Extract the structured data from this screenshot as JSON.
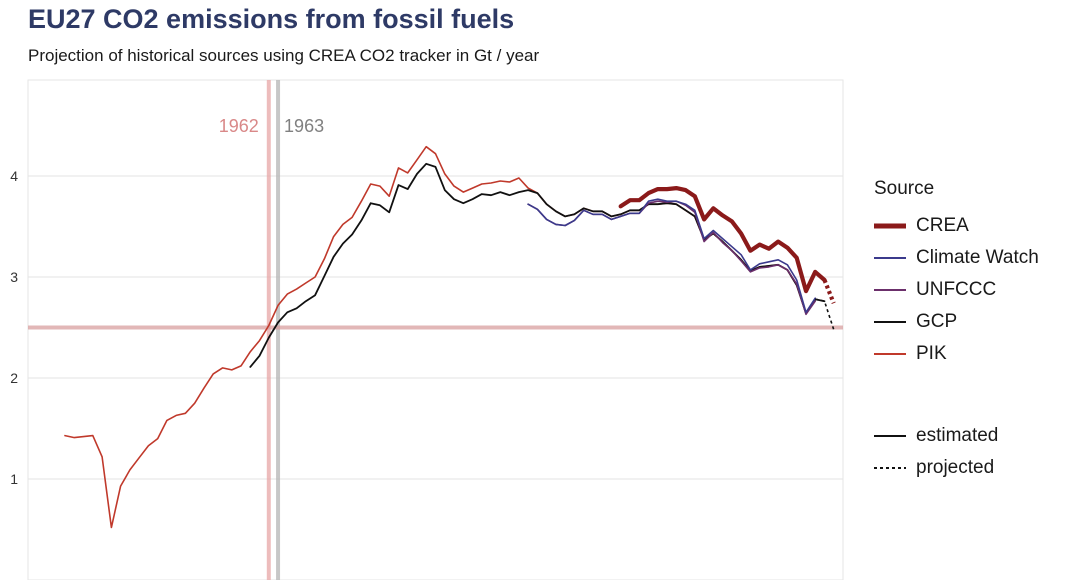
{
  "title": "EU27 CO2 emissions from fossil fuels",
  "subtitle": "Projection of historical sources using CREA CO2 tracker in Gt / year",
  "colors": {
    "CREA": "#8b1a1a",
    "Climate Watch": "#3b3a8c",
    "UNFCCC": "#6b2f6b",
    "GCP": "#111111",
    "PIK": "#c0392b",
    "vline_1962": "#e8a6a6",
    "vline_1963": "#b5b5b5",
    "hline": "#d9a0a0"
  },
  "legend": {
    "title": "Source",
    "items": [
      "CREA",
      "Climate Watch",
      "UNFCCC",
      "GCP",
      "PIK"
    ],
    "linetype_items": [
      "estimated",
      "projected"
    ]
  },
  "annotations": {
    "vline_1962": {
      "x": 1962,
      "label": "1962"
    },
    "vline_1963": {
      "x": 1963,
      "label": "1963"
    },
    "hline": {
      "y": 2.5
    }
  },
  "chart_data": {
    "type": "line",
    "title": "EU27 CO2 emissions from fossil fuels",
    "subtitle": "Projection of historical sources using CREA CO2 tracker in Gt / year",
    "xlabel": "",
    "ylabel": "",
    "xlim": [
      1936,
      2024
    ],
    "ylim": [
      0.0,
      4.95
    ],
    "yticks": [
      1,
      2,
      3,
      4
    ],
    "grid": true,
    "legend_position": "right",
    "series": [
      {
        "name": "PIK",
        "x": [
          1940,
          1941,
          1942,
          1943,
          1944,
          1945,
          1946,
          1947,
          1948,
          1949,
          1950,
          1951,
          1952,
          1953,
          1954,
          1955,
          1956,
          1957,
          1958,
          1959,
          1960,
          1961,
          1962,
          1963,
          1964,
          1965,
          1966,
          1967,
          1968,
          1969,
          1970,
          1971,
          1972,
          1973,
          1974,
          1975,
          1976,
          1977,
          1978,
          1979,
          1980,
          1981,
          1982,
          1983,
          1984,
          1985,
          1986,
          1987,
          1988,
          1989,
          1990,
          1991,
          1992,
          1993,
          1994,
          1995,
          1996,
          1997,
          1998,
          1999,
          2000,
          2001,
          2002,
          2003,
          2004,
          2005,
          2006,
          2007,
          2008,
          2009,
          2010,
          2011,
          2012,
          2013,
          2014,
          2015,
          2016,
          2017,
          2018,
          2019,
          2020,
          2021
        ],
        "values": [
          1.43,
          1.41,
          1.42,
          1.43,
          1.22,
          0.52,
          0.93,
          1.09,
          1.21,
          1.33,
          1.4,
          1.58,
          1.63,
          1.65,
          1.75,
          1.9,
          2.04,
          2.1,
          2.08,
          2.12,
          2.26,
          2.37,
          2.52,
          2.72,
          2.83,
          2.88,
          2.94,
          3.0,
          3.18,
          3.4,
          3.52,
          3.59,
          3.75,
          3.92,
          3.9,
          3.8,
          4.08,
          4.03,
          4.16,
          4.29,
          4.22,
          4.02,
          3.9,
          3.84,
          3.88,
          3.92,
          3.93,
          3.95,
          3.94,
          3.98,
          3.88,
          3.83,
          3.72,
          3.65,
          3.6,
          3.62,
          3.68,
          3.65,
          3.65,
          3.6,
          3.62,
          3.66,
          3.66,
          3.72,
          3.72,
          3.73,
          3.72,
          3.66,
          3.6,
          3.37,
          3.43,
          3.35,
          3.26,
          3.17,
          3.06,
          3.1,
          3.11,
          3.12,
          3.07,
          2.92,
          2.64,
          2.78
        ]
      },
      {
        "name": "GCP",
        "x": [
          1960,
          1961,
          1962,
          1963,
          1964,
          1965,
          1966,
          1967,
          1968,
          1969,
          1970,
          1971,
          1972,
          1973,
          1974,
          1975,
          1976,
          1977,
          1978,
          1979,
          1980,
          1981,
          1982,
          1983,
          1984,
          1985,
          1986,
          1987,
          1988,
          1989,
          1990,
          1991,
          1992,
          1993,
          1994,
          1995,
          1996,
          1997,
          1998,
          1999,
          2000,
          2001,
          2002,
          2003,
          2004,
          2005,
          2006,
          2007,
          2008,
          2009,
          2010,
          2011,
          2012,
          2013,
          2014,
          2015,
          2016,
          2017,
          2018,
          2019,
          2020,
          2021,
          2022
        ],
        "values": [
          2.11,
          2.22,
          2.4,
          2.55,
          2.65,
          2.69,
          2.76,
          2.82,
          3.01,
          3.2,
          3.33,
          3.42,
          3.56,
          3.73,
          3.71,
          3.64,
          3.91,
          3.87,
          4.02,
          4.12,
          4.09,
          3.86,
          3.77,
          3.73,
          3.77,
          3.82,
          3.81,
          3.84,
          3.81,
          3.84,
          3.86,
          3.83,
          3.72,
          3.65,
          3.6,
          3.62,
          3.68,
          3.65,
          3.65,
          3.6,
          3.62,
          3.66,
          3.66,
          3.72,
          3.72,
          3.73,
          3.72,
          3.66,
          3.6,
          3.37,
          3.43,
          3.35,
          3.26,
          3.17,
          3.06,
          3.1,
          3.11,
          3.12,
          3.07,
          2.92,
          2.64,
          2.78,
          2.76
        ]
      },
      {
        "name": "UNFCCC",
        "x": [
          1990,
          1991,
          1992,
          1993,
          1994,
          1995,
          1996,
          1997,
          1998,
          1999,
          2000,
          2001,
          2002,
          2003,
          2004,
          2005,
          2006,
          2007,
          2008,
          2009,
          2010,
          2011,
          2012,
          2013,
          2014,
          2015,
          2016,
          2017,
          2018,
          2019,
          2020,
          2021
        ],
        "values": [
          3.72,
          3.67,
          3.57,
          3.52,
          3.51,
          3.56,
          3.66,
          3.62,
          3.62,
          3.57,
          3.6,
          3.63,
          3.63,
          3.73,
          3.75,
          3.74,
          3.75,
          3.71,
          3.64,
          3.35,
          3.44,
          3.34,
          3.26,
          3.16,
          3.05,
          3.09,
          3.1,
          3.12,
          3.07,
          2.93,
          2.63,
          2.76
        ]
      },
      {
        "name": "Climate Watch",
        "x": [
          1990,
          1991,
          1992,
          1993,
          1994,
          1995,
          1996,
          1997,
          1998,
          1999,
          2000,
          2001,
          2002,
          2003,
          2004,
          2005,
          2006,
          2007,
          2008,
          2009,
          2010,
          2011,
          2012,
          2013,
          2014,
          2015,
          2016,
          2017,
          2018,
          2019,
          2020,
          2021
        ],
        "values": [
          3.72,
          3.67,
          3.57,
          3.52,
          3.51,
          3.56,
          3.66,
          3.62,
          3.62,
          3.57,
          3.6,
          3.63,
          3.63,
          3.75,
          3.77,
          3.75,
          3.75,
          3.72,
          3.66,
          3.38,
          3.46,
          3.38,
          3.3,
          3.22,
          3.07,
          3.13,
          3.15,
          3.17,
          3.12,
          2.97,
          2.65,
          2.79
        ]
      },
      {
        "name": "CREA",
        "x": [
          2000,
          2001,
          2002,
          2003,
          2004,
          2005,
          2006,
          2007,
          2008,
          2009,
          2010,
          2011,
          2012,
          2013,
          2014,
          2015,
          2016,
          2017,
          2018,
          2019,
          2020,
          2021,
          2022
        ],
        "values": [
          3.7,
          3.76,
          3.76,
          3.83,
          3.87,
          3.87,
          3.88,
          3.86,
          3.8,
          3.57,
          3.68,
          3.61,
          3.55,
          3.43,
          3.26,
          3.32,
          3.28,
          3.35,
          3.29,
          3.19,
          2.86,
          3.05,
          2.97
        ]
      },
      {
        "name": "CREA projected",
        "x": [
          2022,
          2023
        ],
        "values": [
          2.97,
          2.74
        ],
        "color_of": "CREA",
        "linetype": "projected"
      },
      {
        "name": "GCP projected",
        "x": [
          2021,
          2022,
          2023
        ],
        "values": [
          2.78,
          2.76,
          2.48
        ],
        "color_of": "GCP",
        "linetype": "projected"
      }
    ]
  }
}
